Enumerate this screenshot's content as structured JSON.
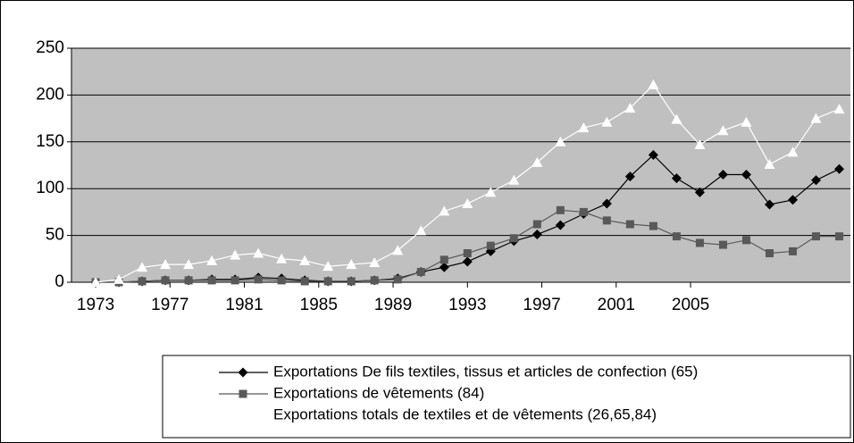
{
  "chart_data": {
    "type": "line",
    "x": [
      1973,
      1974.25,
      1975.5,
      1976.75,
      1978,
      1979.25,
      1980.5,
      1981.75,
      1983,
      1984.25,
      1985.5,
      1986.75,
      1988,
      1989.25,
      1990.5,
      1991.75,
      1993,
      1994.25,
      1995.5,
      1996.75,
      1998,
      1999.25,
      2000.5,
      2001.75,
      2003,
      2004.25,
      2005.5,
      2006.75,
      2008,
      2009.25,
      2010.5,
      2011.75,
      2013
    ],
    "series": [
      {
        "name": "Exportations De fils textiles, tissus et articles de confection (65)",
        "color": "#000000",
        "marker": "diamond",
        "values": [
          0,
          0,
          1,
          2,
          2,
          3,
          3,
          5,
          4,
          2,
          1,
          1,
          2,
          4,
          11,
          16,
          22,
          33,
          44,
          51,
          61,
          73,
          84,
          113,
          136,
          111,
          96,
          115,
          115,
          83,
          88,
          109,
          121
        ]
      },
      {
        "name": "Exportations de vêtements (84)",
        "color": "#595959",
        "marker": "square",
        "values": [
          0,
          0,
          1,
          2,
          2,
          2,
          2,
          3,
          2,
          1,
          1,
          1,
          2,
          3,
          11,
          24,
          31,
          39,
          47,
          62,
          77,
          75,
          66,
          62,
          60,
          49,
          42,
          40,
          45,
          31,
          33,
          49,
          49
        ]
      },
      {
        "name": "Exportations totals de textiles et de vêtements (26,65,84)",
        "color": "#ffffff",
        "marker": "triangle",
        "values": [
          0,
          3,
          16,
          19,
          19,
          23,
          29,
          31,
          25,
          23,
          17,
          19,
          21,
          34,
          55,
          76,
          84,
          96,
          109,
          128,
          150,
          165,
          171,
          186,
          211,
          174,
          147,
          162,
          171,
          126,
          139,
          175,
          185
        ]
      }
    ],
    "xlim": [
      1971.7,
      2013.6
    ],
    "xticks": [
      1973,
      1977,
      1981,
      1985,
      1989,
      1993,
      1997,
      2001,
      2005
    ],
    "ylim": [
      0,
      250
    ],
    "yticks": [
      0,
      50,
      100,
      150,
      200,
      250
    ],
    "grid": true,
    "plot_background": "#c0c0c0",
    "legend": "bottom"
  }
}
